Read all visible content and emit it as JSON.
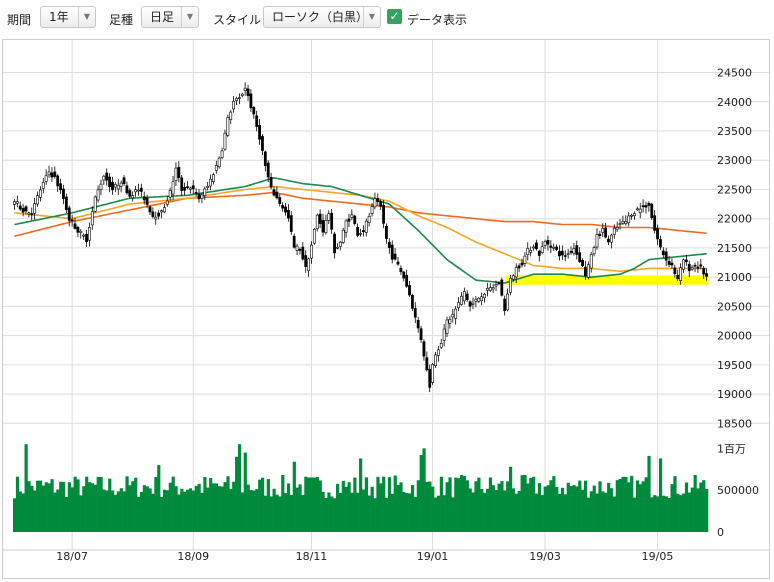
{
  "toolbar": {
    "period_label": "期間",
    "period_value": "1年",
    "bar_label": "足種",
    "bar_value": "日足",
    "style_label": "スタイル",
    "style_value": "ローソク（白黒）",
    "data_display_label": "データ表示",
    "data_display_checked": true
  },
  "chart_data": {
    "type": "candlestick",
    "price_axis": {
      "min": 18300,
      "max": 24800,
      "ticks": [
        18500,
        19000,
        19500,
        20000,
        20500,
        21000,
        21500,
        22000,
        22500,
        23000,
        23500,
        24000,
        24500
      ]
    },
    "volume_axis": {
      "min": 0,
      "max": 1100000,
      "ticks": [
        {
          "value": 0,
          "label": "0"
        },
        {
          "value": 500000,
          "label": "500000"
        },
        {
          "value": 1000000,
          "label": "1百万"
        }
      ]
    },
    "x_ticks": [
      {
        "index": 20,
        "label": "18/07"
      },
      {
        "index": 62,
        "label": "18/09"
      },
      {
        "index": 103,
        "label": "18/11"
      },
      {
        "index": 145,
        "label": "19/01"
      },
      {
        "index": 184,
        "label": "19/03"
      },
      {
        "index": 223,
        "label": "19/05"
      }
    ],
    "highlight_band": {
      "from_index": 171,
      "to_index": 240,
      "low": 20870,
      "high": 21030,
      "color": "#ffff00"
    },
    "close_anchors": [
      [
        0,
        22300
      ],
      [
        3,
        22150
      ],
      [
        6,
        22100
      ],
      [
        9,
        22500
      ],
      [
        12,
        22800
      ],
      [
        14,
        22700
      ],
      [
        17,
        22350
      ],
      [
        19,
        22000
      ],
      [
        22,
        21800
      ],
      [
        25,
        21650
      ],
      [
        28,
        22350
      ],
      [
        31,
        22750
      ],
      [
        34,
        22500
      ],
      [
        37,
        22650
      ],
      [
        40,
        22400
      ],
      [
        43,
        22500
      ],
      [
        45,
        22350
      ],
      [
        48,
        22050
      ],
      [
        51,
        22100
      ],
      [
        54,
        22450
      ],
      [
        56,
        22850
      ],
      [
        58,
        22500
      ],
      [
        61,
        22550
      ],
      [
        64,
        22350
      ],
      [
        67,
        22550
      ],
      [
        70,
        22900
      ],
      [
        72,
        23200
      ],
      [
        74,
        23700
      ],
      [
        76,
        24000
      ],
      [
        78,
        24050
      ],
      [
        80,
        24250
      ],
      [
        81,
        24100
      ],
      [
        83,
        23750
      ],
      [
        85,
        23400
      ],
      [
        87,
        22900
      ],
      [
        89,
        22500
      ],
      [
        91,
        22350
      ],
      [
        93,
        22200
      ],
      [
        95,
        22000
      ],
      [
        97,
        21500
      ],
      [
        99,
        21500
      ],
      [
        101,
        21150
      ],
      [
        103,
        21550
      ],
      [
        105,
        22050
      ],
      [
        107,
        21800
      ],
      [
        109,
        22100
      ],
      [
        111,
        21450
      ],
      [
        113,
        21600
      ],
      [
        115,
        21950
      ],
      [
        117,
        22050
      ],
      [
        119,
        21750
      ],
      [
        121,
        21800
      ],
      [
        123,
        22050
      ],
      [
        125,
        22300
      ],
      [
        127,
        22200
      ],
      [
        129,
        21650
      ],
      [
        131,
        21350
      ],
      [
        133,
        21200
      ],
      [
        135,
        21000
      ],
      [
        137,
        20700
      ],
      [
        139,
        20300
      ],
      [
        141,
        19950
      ],
      [
        143,
        19400
      ],
      [
        144,
        19150
      ],
      [
        145,
        19500
      ],
      [
        146,
        19700
      ],
      [
        148,
        19900
      ],
      [
        150,
        20250
      ],
      [
        152,
        20350
      ],
      [
        154,
        20550
      ],
      [
        156,
        20750
      ],
      [
        158,
        20500
      ],
      [
        160,
        20600
      ],
      [
        162,
        20700
      ],
      [
        165,
        20800
      ],
      [
        168,
        20900
      ],
      [
        170,
        20450
      ],
      [
        172,
        20950
      ],
      [
        174,
        21150
      ],
      [
        176,
        21250
      ],
      [
        178,
        21450
      ],
      [
        180,
        21550
      ],
      [
        182,
        21400
      ],
      [
        184,
        21600
      ],
      [
        186,
        21550
      ],
      [
        188,
        21450
      ],
      [
        190,
        21350
      ],
      [
        192,
        21400
      ],
      [
        194,
        21500
      ],
      [
        196,
        21300
      ],
      [
        198,
        21050
      ],
      [
        200,
        21350
      ],
      [
        202,
        21700
      ],
      [
        204,
        21800
      ],
      [
        206,
        21600
      ],
      [
        208,
        21800
      ],
      [
        210,
        21900
      ],
      [
        212,
        21950
      ],
      [
        214,
        22100
      ],
      [
        216,
        22150
      ],
      [
        218,
        22200
      ],
      [
        220,
        22250
      ],
      [
        222,
        21800
      ],
      [
        224,
        21500
      ],
      [
        226,
        21300
      ],
      [
        228,
        21200
      ],
      [
        230,
        20950
      ],
      [
        232,
        21300
      ],
      [
        234,
        21150
      ],
      [
        236,
        21200
      ],
      [
        238,
        21150
      ],
      [
        240,
        21000
      ]
    ],
    "ma_short_anchors": [
      [
        0,
        21900
      ],
      [
        20,
        22100
      ],
      [
        40,
        22350
      ],
      [
        60,
        22400
      ],
      [
        80,
        22550
      ],
      [
        90,
        22700
      ],
      [
        100,
        22600
      ],
      [
        110,
        22550
      ],
      [
        120,
        22400
      ],
      [
        130,
        22250
      ],
      [
        140,
        21800
      ],
      [
        150,
        21300
      ],
      [
        160,
        20950
      ],
      [
        170,
        20900
      ],
      [
        180,
        21050
      ],
      [
        190,
        21050
      ],
      [
        200,
        21000
      ],
      [
        210,
        21050
      ],
      [
        215,
        21150
      ],
      [
        220,
        21300
      ],
      [
        230,
        21350
      ],
      [
        240,
        21400
      ]
    ],
    "ma_mid_anchors": [
      [
        0,
        22100
      ],
      [
        20,
        22000
      ],
      [
        40,
        22250
      ],
      [
        60,
        22350
      ],
      [
        80,
        22500
      ],
      [
        90,
        22550
      ],
      [
        100,
        22500
      ],
      [
        110,
        22450
      ],
      [
        120,
        22400
      ],
      [
        130,
        22300
      ],
      [
        140,
        22050
      ],
      [
        150,
        21850
      ],
      [
        160,
        21600
      ],
      [
        170,
        21400
      ],
      [
        180,
        21200
      ],
      [
        190,
        21150
      ],
      [
        200,
        21150
      ],
      [
        210,
        21100
      ],
      [
        220,
        21150
      ],
      [
        230,
        21150
      ],
      [
        240,
        21150
      ]
    ],
    "ma_long_anchors": [
      [
        0,
        21700
      ],
      [
        20,
        21950
      ],
      [
        40,
        22150
      ],
      [
        60,
        22350
      ],
      [
        80,
        22400
      ],
      [
        90,
        22450
      ],
      [
        100,
        22350
      ],
      [
        110,
        22300
      ],
      [
        120,
        22250
      ],
      [
        130,
        22200
      ],
      [
        140,
        22100
      ],
      [
        150,
        22050
      ],
      [
        160,
        22000
      ],
      [
        170,
        21950
      ],
      [
        180,
        21950
      ],
      [
        190,
        21900
      ],
      [
        200,
        21900
      ],
      [
        210,
        21850
      ],
      [
        220,
        21850
      ],
      [
        230,
        21800
      ],
      [
        240,
        21750
      ]
    ],
    "series_colors": {
      "ma_short": "#1a8a4a",
      "ma_mid": "#f5a623",
      "ma_long": "#ee6b1e",
      "volume": "#008a3c",
      "candle_up_fill": "#ffffff",
      "candle_down_fill": "#000000",
      "candle_edge": "#000000",
      "grid": "#dddddd",
      "axis_text": "#222222"
    },
    "volume_profile": {
      "base": 560000,
      "spikes": [
        [
          4,
          1050000
        ],
        [
          50,
          800000
        ],
        [
          77,
          900000
        ],
        [
          78,
          1050000
        ],
        [
          80,
          950000
        ],
        [
          97,
          840000
        ],
        [
          120,
          880000
        ],
        [
          141,
          920000
        ],
        [
          142,
          1000000
        ],
        [
          172,
          780000
        ],
        [
          220,
          910000
        ],
        [
          224,
          880000
        ]
      ]
    },
    "grid": true
  }
}
